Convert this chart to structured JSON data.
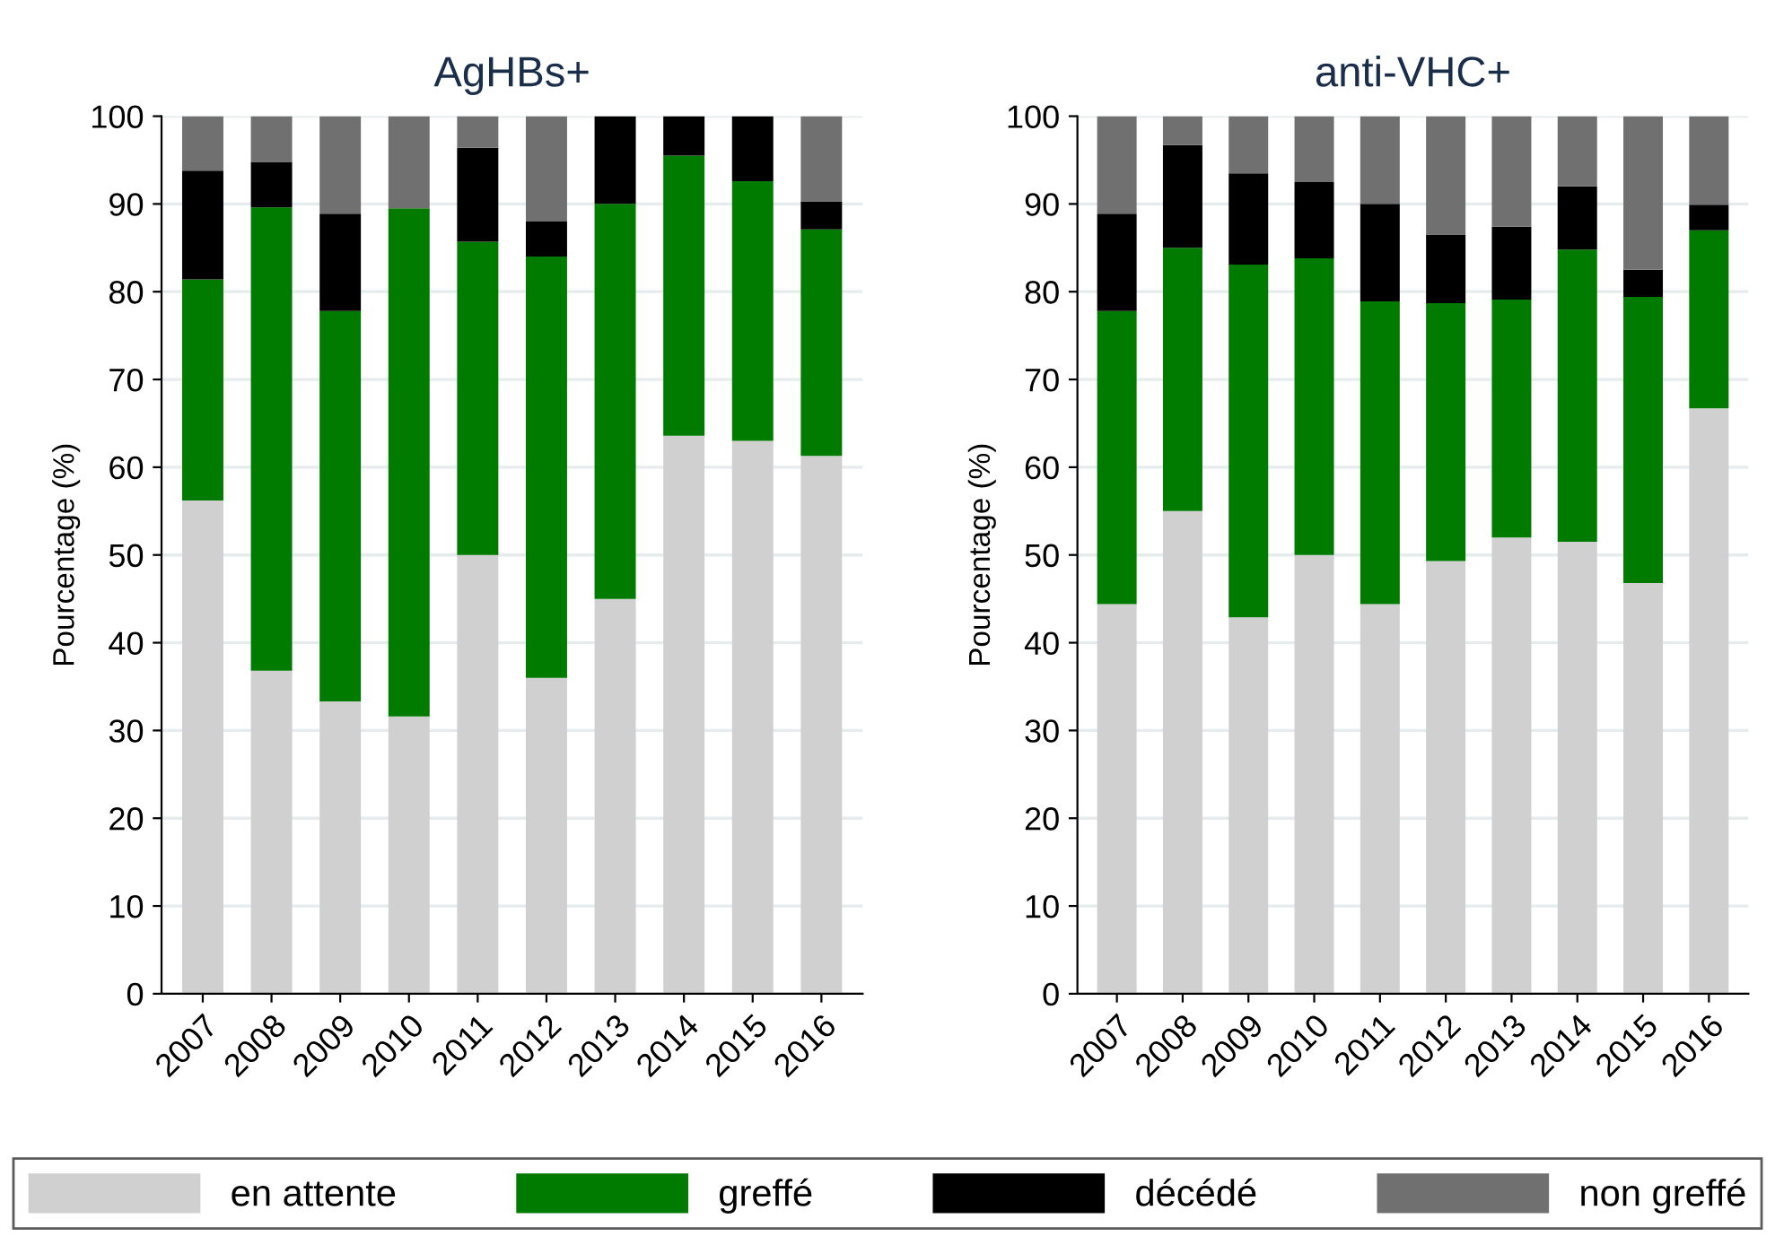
{
  "chart_data": [
    {
      "type": "bar",
      "stacked": true,
      "title": "AgHBs+",
      "ylabel": "Pourcentage (%)",
      "categories": [
        "2007",
        "2008",
        "2009",
        "2010",
        "2011",
        "2012",
        "2013",
        "2014",
        "2015",
        "2016"
      ],
      "ylim": [
        0,
        100
      ],
      "yticks": [
        0,
        10,
        20,
        30,
        40,
        50,
        60,
        70,
        80,
        90,
        100
      ],
      "grid": "y",
      "legend": "bottom",
      "series": [
        {
          "name": "en attente",
          "color": "#d0d0d0",
          "values": [
            56.2,
            36.8,
            33.3,
            31.6,
            50,
            36,
            45,
            63.6,
            63,
            61.3
          ]
        },
        {
          "name": "greffé",
          "color": "#007b00",
          "values": [
            25.2,
            52.8,
            44.5,
            57.9,
            35.7,
            48,
            45,
            31.9,
            29.6,
            25.8
          ]
        },
        {
          "name": "décédé",
          "color": "#000000",
          "values": [
            12.4,
            5.2,
            11.1,
            0,
            10.7,
            4,
            10,
            4.5,
            7.4,
            3.2
          ]
        },
        {
          "name": "non greffé",
          "color": "#707070",
          "values": [
            6.2,
            5.2,
            11.1,
            10.5,
            3.6,
            12,
            0,
            0,
            0,
            9.7
          ]
        }
      ]
    },
    {
      "type": "bar",
      "stacked": true,
      "title": "anti-VHC+",
      "ylabel": "Pourcentage (%)",
      "categories": [
        "2007",
        "2008",
        "2009",
        "2010",
        "2011",
        "2012",
        "2013",
        "2014",
        "2015",
        "2016"
      ],
      "ylim": [
        0,
        100
      ],
      "yticks": [
        0,
        10,
        20,
        30,
        40,
        50,
        60,
        70,
        80,
        90,
        100
      ],
      "grid": "y",
      "series": [
        {
          "color": "#d0d0d0",
          "values": [
            44.4,
            55,
            42.9,
            50,
            44.4,
            49.3,
            52,
            51.5,
            46.8,
            66.7
          ]
        },
        {
          "color": "#007b00",
          "values": [
            33.4,
            30,
            40.2,
            33.8,
            34.5,
            29.4,
            27.1,
            33.3,
            32.6,
            20.3
          ]
        },
        {
          "color": "#000000",
          "values": [
            11.1,
            11.7,
            10.4,
            8.7,
            11.1,
            7.8,
            8.3,
            7.2,
            3.1,
            2.9
          ]
        },
        {
          "color": "#707070",
          "values": [
            11.1,
            3.3,
            6.5,
            7.5,
            10,
            13.5,
            12.6,
            8,
            17.5,
            10.1
          ]
        }
      ]
    }
  ]
}
